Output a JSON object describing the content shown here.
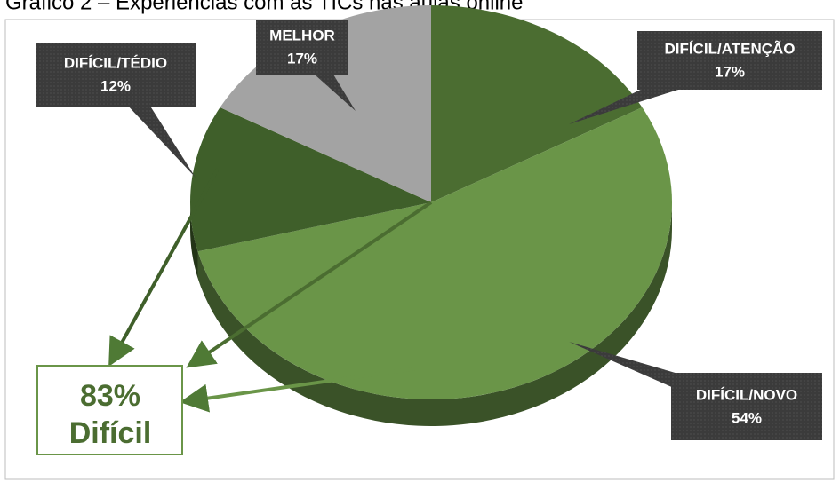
{
  "chart_data": {
    "type": "pie",
    "title": "Gráfico 2 – Experiências com as TICs nas aulas online",
    "categories": [
      "DIFÍCIL/ATENÇÃO",
      "DIFÍCIL/NOVO",
      "DIFÍCIL/TÉDIO",
      "MELHOR"
    ],
    "values": [
      17,
      54,
      12,
      17
    ],
    "value_labels": [
      "17%",
      "54%",
      "12%",
      "17%"
    ],
    "colors": [
      "#4b6d31",
      "#6a9548",
      "#3f5f2a",
      "#a3a3a3"
    ],
    "annotation": [
      "83%",
      "Difícil"
    ]
  }
}
